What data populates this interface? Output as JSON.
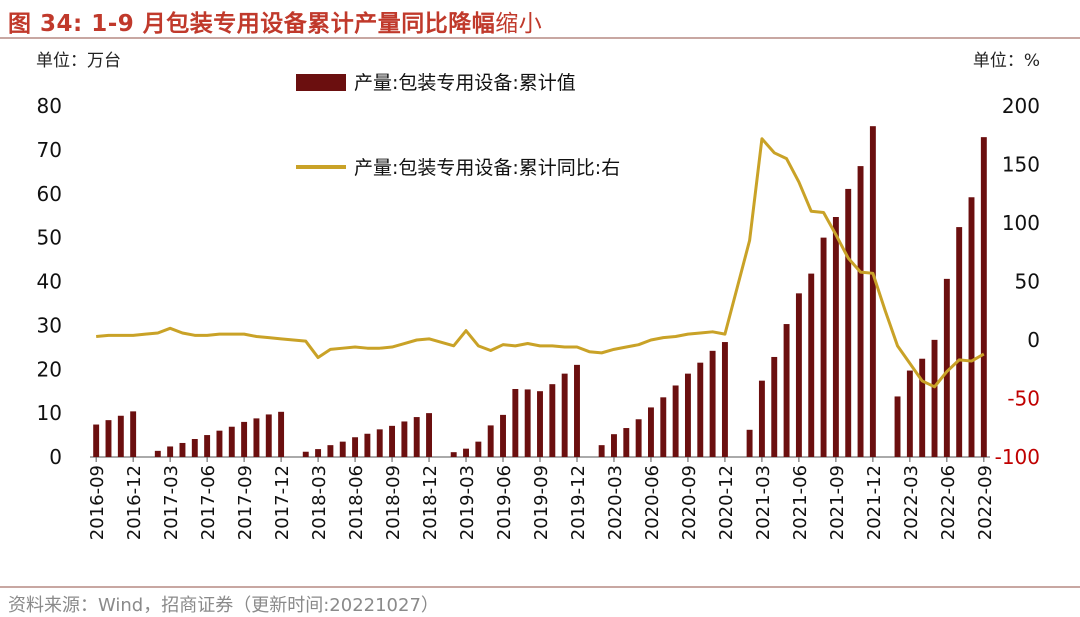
{
  "figure": {
    "number": "图 34:",
    "title_bold": "1-9 月包装专用设备累计产量同比降幅",
    "title_light": "缩小",
    "source": "资料来源：Wind，招商证券（更新时间:20221027）"
  },
  "colors": {
    "bar": "#6B0F0F",
    "line": "#C9A227",
    "title": "#C0392B",
    "right_axis": "#C00000"
  },
  "chart_data": {
    "type": "bar+line",
    "left_unit_label": "单位：万台",
    "right_unit_label": "单位：%",
    "left_ylim": [
      0,
      80
    ],
    "left_ticks": [
      0,
      10,
      20,
      30,
      40,
      50,
      60,
      70,
      80
    ],
    "right_ylim": [
      -100,
      200
    ],
    "right_ticks": [
      -100,
      -50,
      0,
      50,
      100,
      150,
      200
    ],
    "x_tick_labels": [
      "2016-09",
      "2016-12",
      "2017-03",
      "2017-06",
      "2017-09",
      "2017-12",
      "2018-03",
      "2018-06",
      "2018-09",
      "2018-12",
      "2019-03",
      "2019-06",
      "2019-09",
      "2019-12",
      "2020-03",
      "2020-06",
      "2020-09",
      "2020-12",
      "2021-03",
      "2021-06",
      "2021-09",
      "2021-12",
      "2022-03",
      "2022-06",
      "2022-09"
    ],
    "months": [
      "2016-09",
      "2016-10",
      "2016-11",
      "2016-12",
      "2017-01",
      "2017-02",
      "2017-03",
      "2017-04",
      "2017-05",
      "2017-06",
      "2017-07",
      "2017-08",
      "2017-09",
      "2017-10",
      "2017-11",
      "2017-12",
      "2018-01",
      "2018-02",
      "2018-03",
      "2018-04",
      "2018-05",
      "2018-06",
      "2018-07",
      "2018-08",
      "2018-09",
      "2018-10",
      "2018-11",
      "2018-12",
      "2019-01",
      "2019-02",
      "2019-03",
      "2019-04",
      "2019-05",
      "2019-06",
      "2019-07",
      "2019-08",
      "2019-09",
      "2019-10",
      "2019-11",
      "2019-12",
      "2020-01",
      "2020-02",
      "2020-03",
      "2020-04",
      "2020-05",
      "2020-06",
      "2020-07",
      "2020-08",
      "2020-09",
      "2020-10",
      "2020-11",
      "2020-12",
      "2021-01",
      "2021-02",
      "2021-03",
      "2021-04",
      "2021-05",
      "2021-06",
      "2021-07",
      "2021-08",
      "2021-09",
      "2021-10",
      "2021-11",
      "2021-12",
      "2022-01",
      "2022-02",
      "2022-03",
      "2022-04",
      "2022-05",
      "2022-06",
      "2022-07",
      "2022-08",
      "2022-09"
    ],
    "series": [
      {
        "name": "产量:包装专用设备:累计值",
        "type": "bar",
        "axis": "left",
        "values": [
          7.4,
          8.4,
          9.4,
          10.4,
          null,
          1.4,
          2.4,
          3.2,
          4.1,
          5.0,
          6.0,
          6.9,
          8.0,
          8.8,
          9.7,
          10.3,
          null,
          1.2,
          1.8,
          2.7,
          3.5,
          4.5,
          5.3,
          6.3,
          7.1,
          8.1,
          9.1,
          10.0,
          null,
          1.1,
          1.9,
          3.5,
          7.2,
          9.6,
          15.5,
          15.4,
          15.0,
          16.6,
          19.0,
          21.0,
          null,
          2.7,
          5.2,
          6.6,
          8.6,
          11.3,
          13.6,
          16.3,
          19.0,
          21.5,
          24.2,
          26.2,
          null,
          6.2,
          17.4,
          22.8,
          30.3,
          37.3,
          41.8,
          50.0,
          54.7,
          61.1,
          66.3,
          75.4,
          null,
          13.8,
          19.7,
          22.4,
          26.7,
          40.6,
          52.4,
          59.2,
          72.9
        ]
      },
      {
        "name": "产量:包装专用设备:累计同比:右",
        "type": "line",
        "axis": "right",
        "values": [
          3,
          4,
          4,
          4,
          5,
          6,
          10,
          6,
          4,
          4,
          5,
          5,
          5,
          3,
          2,
          1,
          0,
          -1,
          -15,
          -8,
          -7,
          -6,
          -7,
          -7,
          -6,
          -3,
          0,
          1,
          -2,
          -5,
          8,
          -5,
          -9,
          -4,
          -5,
          -3,
          -5,
          -5,
          -6,
          -6,
          -10,
          -11,
          -8,
          -6,
          -4,
          0,
          2,
          3,
          5,
          6,
          7,
          5,
          45,
          85,
          172,
          160,
          155,
          135,
          110,
          109,
          90,
          70,
          58,
          57,
          25,
          -5,
          -20,
          -35,
          -40,
          -27,
          -17,
          -18,
          -12
        ]
      }
    ]
  }
}
